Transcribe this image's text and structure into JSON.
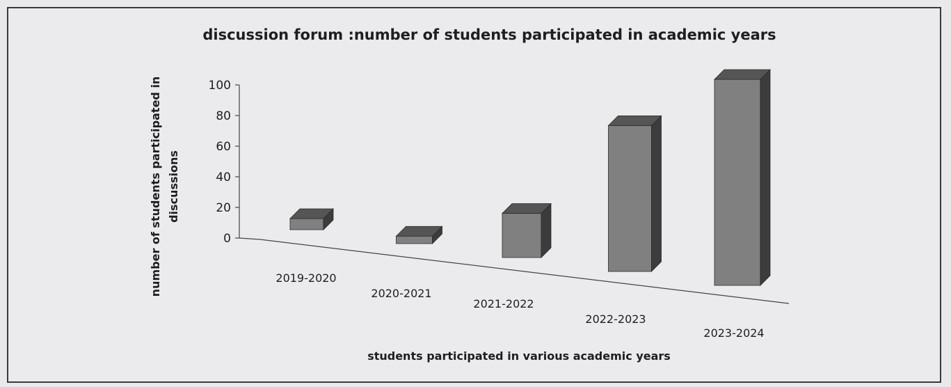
{
  "colors": {
    "bar_front": "#808080",
    "bar_side": "#3c3c3c",
    "bar_top": "#555555",
    "axis": "#444444",
    "background": "#ebeaec"
  },
  "chart_data": {
    "type": "bar",
    "style": "3d-perspective",
    "title": "discussion forum :number of students participated in academic years",
    "xlabel": "students participated in various academic years",
    "ylabel": "number of students participated in discussions",
    "categories": [
      "2019-2020",
      "2020-2021",
      "2021-2022",
      "2022-2023",
      "2023-2024"
    ],
    "values": [
      8,
      5,
      27,
      80,
      100
    ],
    "ylim": [
      0,
      100
    ],
    "yticks": [
      0,
      20,
      40,
      60,
      80,
      100
    ],
    "grid": false,
    "legend": "none"
  }
}
